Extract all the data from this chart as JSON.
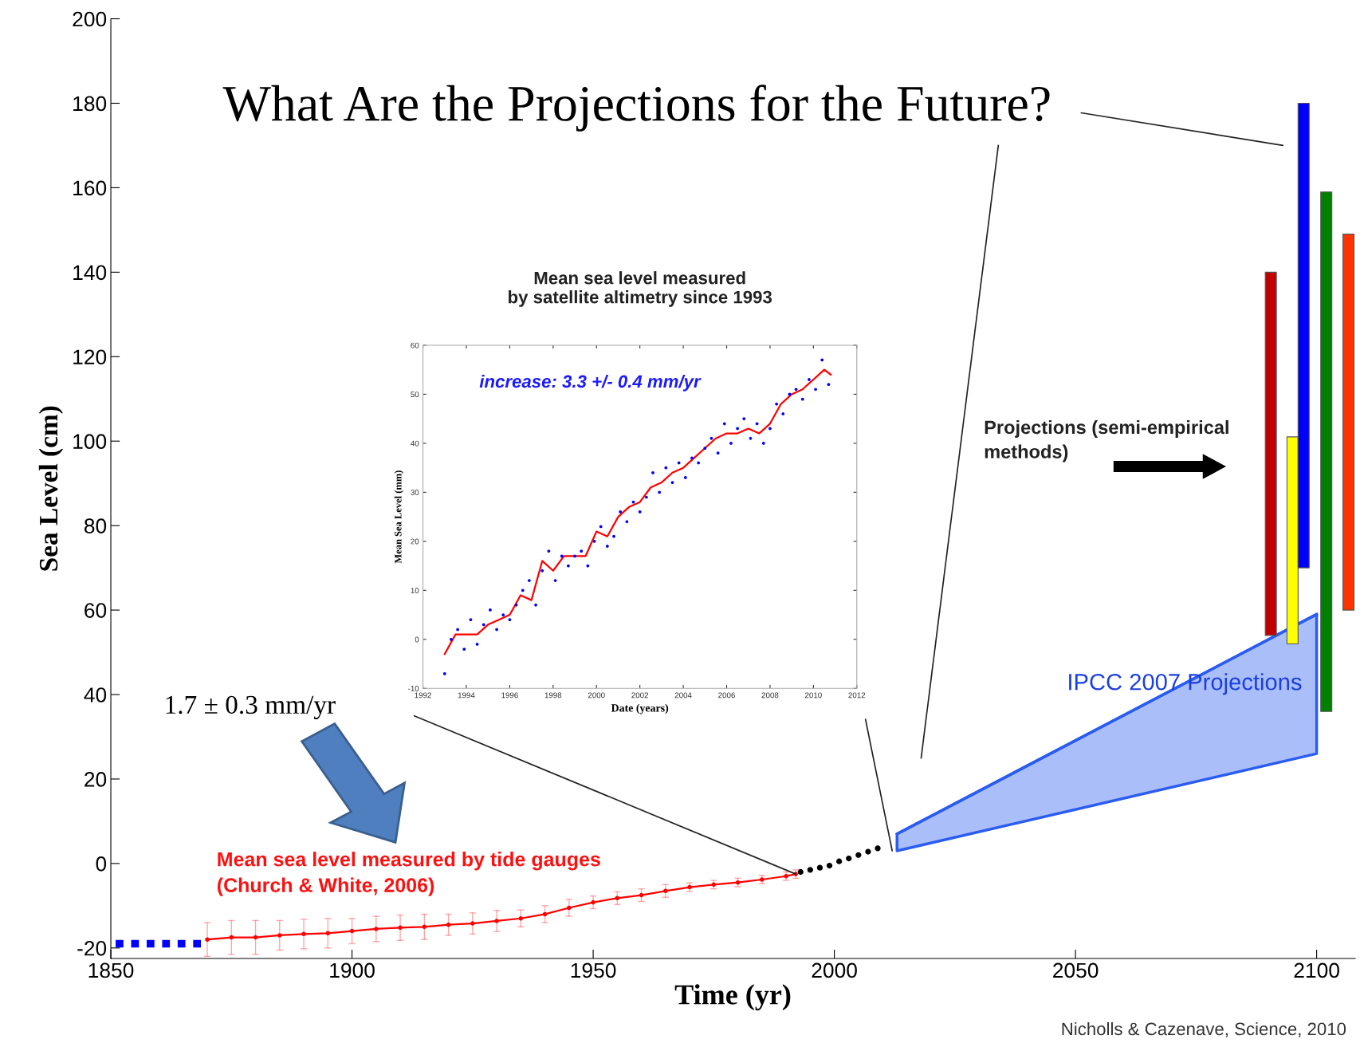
{
  "chart_data": [
    {
      "type": "line",
      "title": "What Are the Projections for the Future?",
      "xlabel": "Time (yr)",
      "ylabel": "Sea Level (cm)",
      "xlim": [
        1850,
        2108
      ],
      "xticks": [
        1850,
        1900,
        1950,
        2000,
        2050,
        2100
      ],
      "ylim": [
        -22.5,
        200
      ],
      "yticks": [
        -20,
        0,
        20,
        40,
        60,
        80,
        100,
        120,
        140,
        160,
        180,
        200
      ],
      "grid": false,
      "annotations": [
        "1.7 ± 0.3 mm/yr",
        "Mean sea level measured by tide gauges\n(Church & White, 2006)",
        "Projections (semi-empirical\nmethods)",
        "Nicholls & Cazenave, Science, 2010"
      ],
      "series": [
        {
          "line_style": "dotted",
          "color": "#0000ff",
          "x": [
            1851,
            1854,
            1857,
            1860,
            1863,
            1866,
            1869
          ],
          "values": [
            -19,
            -19,
            -19,
            -19,
            -19,
            -19,
            -19
          ]
        },
        {
          "marker": "circle",
          "color": "#ff0000",
          "x": [
            1870,
            1875,
            1880,
            1885,
            1890,
            1895,
            1900,
            1905,
            1910,
            1915,
            1920,
            1925,
            1930,
            1935,
            1940,
            1945,
            1950,
            1955,
            1960,
            1965,
            1970,
            1975,
            1980,
            1985,
            1990,
            1992
          ],
          "values": [
            -18,
            -17.5,
            -17.5,
            -17,
            -16.7,
            -16.5,
            -16,
            -15.5,
            -15.2,
            -15,
            -14.5,
            -14.2,
            -13.6,
            -13,
            -12,
            -10.5,
            -9.2,
            -8.2,
            -7.5,
            -6.5,
            -5.6,
            -5,
            -4.5,
            -3.8,
            -3,
            -2.5
          ],
          "errors": [
            4,
            4,
            4,
            3.5,
            3.5,
            3.5,
            3,
            3,
            3,
            3,
            2.5,
            2.5,
            2.5,
            2,
            2,
            2,
            1.5,
            1.5,
            1.5,
            1.5,
            1,
            1,
            1,
            1,
            1,
            1
          ]
        },
        {
          "type": "scatter",
          "marker": "circle",
          "color": "#000000",
          "x": [
            1993,
            1995,
            1997,
            1999,
            2001,
            2003,
            2005,
            2007,
            2009
          ],
          "values": [
            -2,
            -1.5,
            -1,
            -0.5,
            0.5,
            1.2,
            2,
            2.8,
            3.6
          ]
        },
        {
          "type": "line",
          "name": "IPCC 2007 Projections",
          "color": "#2a5cf0",
          "x": [
            2013,
            2100
          ],
          "values": [
            7,
            59
          ],
          "lower": [
            3,
            26
          ],
          "upper": [
            7,
            59
          ]
        },
        {
          "type": "bar",
          "x": [
            2090.5,
            2095,
            2097.3,
            2102,
            2106.6
          ],
          "base": [
            54,
            52,
            70,
            36,
            60
          ],
          "values": [
            86,
            49,
            110,
            123,
            89
          ],
          "colors": [
            "#c00000",
            "#ffff00",
            "#0000ff",
            "#008000",
            "#ff3300"
          ]
        }
      ]
    },
    {
      "type": "line",
      "title": "Mean sea level measured\nby satellite altimetry since 1993",
      "xlabel": "Date (years)",
      "ylabel": "Mean Sea Level (mm)",
      "xlim": [
        1992,
        2012
      ],
      "xticks": [
        1992,
        1994,
        1996,
        1998,
        2000,
        2002,
        2004,
        2006,
        2008,
        2010,
        2012
      ],
      "ylim": [
        -10,
        60
      ],
      "yticks": [
        -10,
        0,
        10,
        20,
        30,
        40,
        50,
        60
      ],
      "grid": false,
      "annotations": [
        "increase: 3.3 +/- 0.4 mm/yr"
      ],
      "series": [
        {
          "type": "scatter",
          "marker": "circle",
          "color": "#0000ff",
          "x": [
            1993.0,
            1993.3,
            1993.6,
            1993.9,
            1994.2,
            1994.5,
            1994.8,
            1995.1,
            1995.4,
            1995.7,
            1996.0,
            1996.3,
            1996.6,
            1996.9,
            1997.2,
            1997.5,
            1997.8,
            1998.1,
            1998.4,
            1998.7,
            1999.0,
            1999.3,
            1999.6,
            1999.9,
            2000.2,
            2000.5,
            2000.8,
            2001.1,
            2001.4,
            2001.7,
            2002.0,
            2002.3,
            2002.6,
            2002.9,
            2003.2,
            2003.5,
            2003.8,
            2004.1,
            2004.4,
            2004.7,
            2005.0,
            2005.3,
            2005.6,
            2005.9,
            2006.2,
            2006.5,
            2006.8,
            2007.1,
            2007.4,
            2007.7,
            2008.0,
            2008.3,
            2008.6,
            2008.9,
            2009.2,
            2009.5,
            2009.8,
            2010.1,
            2010.4,
            2010.7
          ],
          "values": [
            -7,
            0,
            2,
            -2,
            4,
            -1,
            3,
            6,
            2,
            5,
            4,
            7,
            10,
            12,
            7,
            14,
            18,
            12,
            17,
            15,
            17,
            18,
            15,
            20,
            23,
            19,
            21,
            26,
            24,
            28,
            26,
            29,
            34,
            30,
            35,
            32,
            36,
            33,
            37,
            36,
            39,
            41,
            38,
            44,
            40,
            43,
            45,
            41,
            44,
            40,
            43,
            48,
            46,
            50,
            51,
            49,
            53,
            51,
            57,
            52
          ]
        },
        {
          "color": "#ff0000",
          "x": [
            1993.0,
            1993.5,
            1994.0,
            1994.5,
            1995.0,
            1995.5,
            1996.0,
            1996.5,
            1997.0,
            1997.5,
            1998.0,
            1998.5,
            1999.0,
            1999.5,
            2000.0,
            2000.5,
            2001.0,
            2001.5,
            2002.0,
            2002.5,
            2003.0,
            2003.5,
            2004.0,
            2004.5,
            2005.0,
            2005.5,
            2006.0,
            2006.5,
            2007.0,
            2007.5,
            2008.0,
            2008.5,
            2009.0,
            2009.5,
            2010.0,
            2010.5,
            2010.8
          ],
          "values": [
            -3,
            1,
            1,
            1,
            3,
            4,
            5,
            9,
            8,
            16,
            14,
            17,
            17,
            17,
            22,
            21,
            25,
            27,
            28,
            31,
            32,
            34,
            35,
            37,
            39,
            41,
            42,
            42,
            43,
            42,
            44,
            48,
            50,
            51,
            53,
            55,
            54
          ]
        }
      ]
    }
  ]
}
